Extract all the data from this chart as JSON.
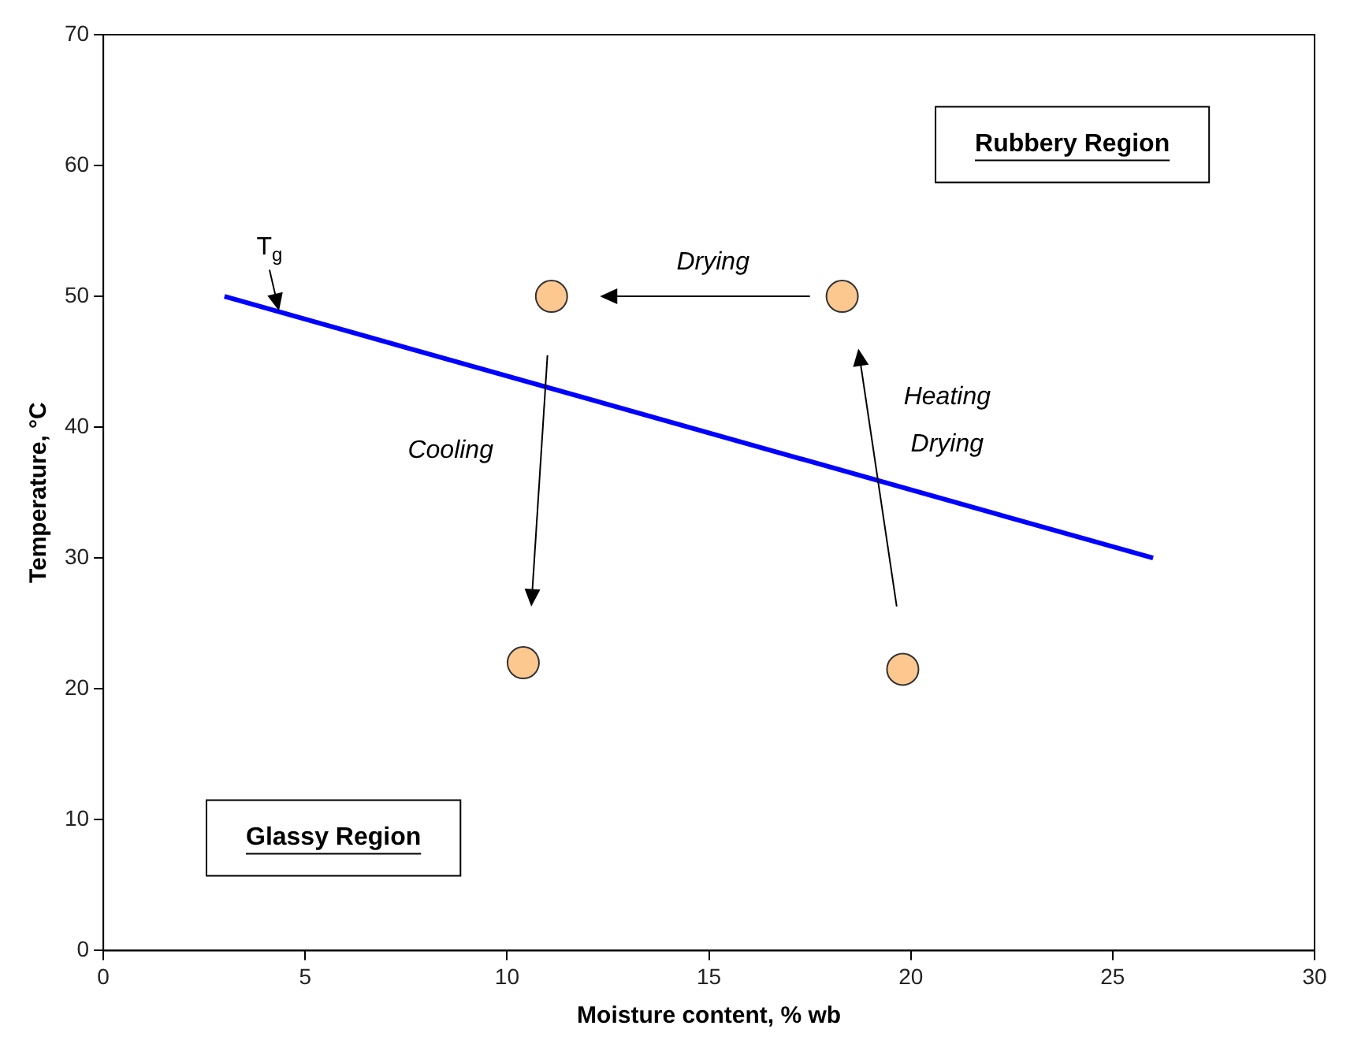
{
  "chart_data": {
    "type": "line",
    "xlabel": "Moisture content, % wb",
    "ylabel": "Temperature, °C",
    "xlim": [
      0,
      30
    ],
    "xticks": [
      0,
      5,
      10,
      15,
      20,
      25,
      30
    ],
    "ylim": [
      0,
      70
    ],
    "yticks": [
      0,
      10,
      20,
      30,
      40,
      50,
      60,
      70
    ],
    "grid": false,
    "legend": false,
    "series": [
      {
        "type": "line",
        "color": "#0000ff",
        "x": [
          3,
          26
        ],
        "values": [
          50,
          30
        ]
      },
      {
        "type": "scatter",
        "marker": "circle",
        "color": "#fcc88f",
        "x": [
          11.1,
          18.3,
          10.4,
          19.8
        ],
        "values": [
          50,
          50,
          22,
          21.5
        ]
      }
    ],
    "annotations": [
      {
        "text": "T$_{g}$",
        "x": 4.35,
        "y": 48.9
      },
      "Drying",
      "Cooling",
      "Heating\nDrying",
      "Rubbery Region",
      "Glassy Region"
    ]
  }
}
